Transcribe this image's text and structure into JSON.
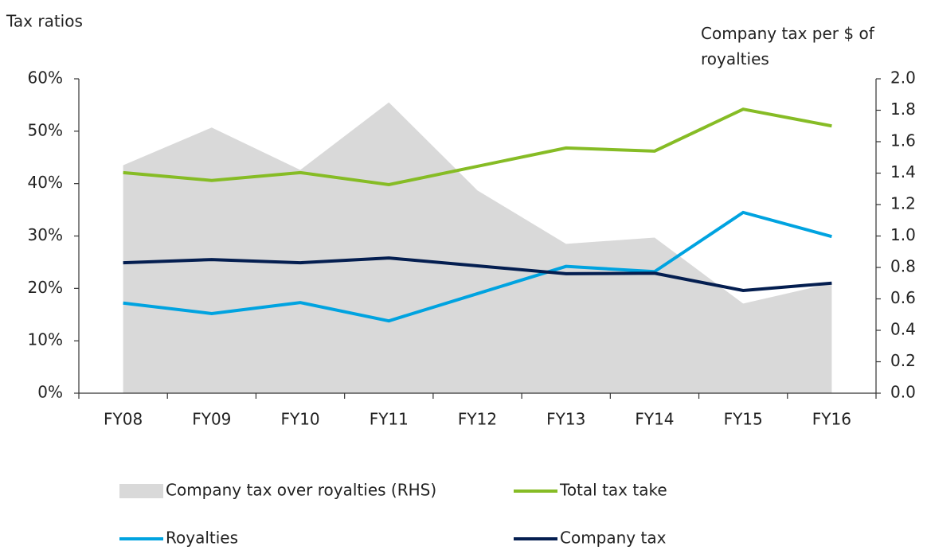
{
  "chart_data": {
    "type": "line",
    "ylabel": "Tax ratios",
    "y2label": "Company tax per $ of royalties",
    "categories": [
      "FY08",
      "FY09",
      "FY10",
      "FY11",
      "FY12",
      "FY13",
      "FY14",
      "FY15",
      "FY16"
    ],
    "ylim": [
      0,
      60
    ],
    "yticks": [
      {
        "value": 0,
        "label": "0%"
      },
      {
        "value": 10,
        "label": "10%"
      },
      {
        "value": 20,
        "label": "20%"
      },
      {
        "value": 30,
        "label": "30%"
      },
      {
        "value": 40,
        "label": "40%"
      },
      {
        "value": 50,
        "label": "50%"
      },
      {
        "value": 60,
        "label": "60%"
      }
    ],
    "y2lim": [
      0,
      2
    ],
    "y2ticks": [
      {
        "value": 0,
        "label": "0.0"
      },
      0.2,
      0.4,
      0.6,
      0.8,
      {
        "value": 1,
        "label": "1.0"
      },
      1.2,
      1.4,
      1.6,
      1.8,
      {
        "value": 2,
        "label": "2.0"
      }
    ],
    "series": [
      {
        "name": "Company tax over royalties (RHS)",
        "type": "area",
        "axis": "y2",
        "color": "#d9d9d9",
        "values": [
          1.45,
          1.69,
          1.42,
          1.85,
          1.29,
          0.95,
          0.99,
          0.57,
          0.7
        ]
      },
      {
        "name": "Total tax take",
        "color": "#86bc25",
        "values": [
          42.1,
          40.6,
          42.1,
          39.8,
          43.3,
          46.8,
          46.2,
          54.2,
          51.0
        ]
      },
      {
        "name": "Royalties",
        "color": "#00a3e0",
        "values": [
          17.2,
          15.2,
          17.3,
          13.8,
          19.0,
          24.2,
          23.2,
          34.5,
          29.9
        ]
      },
      {
        "name": "Company tax",
        "color": "#041e50",
        "values": [
          24.9,
          25.5,
          24.9,
          25.8,
          24.3,
          22.8,
          22.9,
          19.6,
          21.0
        ]
      }
    ]
  }
}
